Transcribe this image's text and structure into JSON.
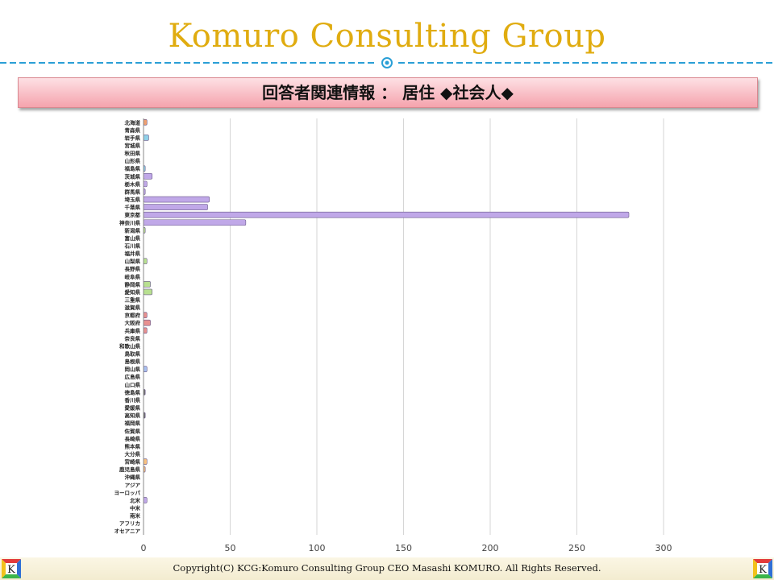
{
  "header": {
    "title": "Komuro Consulting Group"
  },
  "subtitle": "回答者関連情報 ： 居住 ◆社会人◆",
  "footer": {
    "copyright": "Copyright(C)  KCG:Komuro Consulting Group  CEO Masashi KOMURO. All Rights Reserved."
  },
  "logos": {
    "left": "K",
    "right": "K"
  },
  "chart_data": {
    "type": "bar",
    "orientation": "horizontal",
    "xlim": [
      0,
      300
    ],
    "xticks": [
      0,
      50,
      100,
      150,
      200,
      250,
      300
    ],
    "grid": true,
    "categories": [
      "北海道",
      "青森県",
      "岩手県",
      "宮城県",
      "秋田県",
      "山形県",
      "福島県",
      "茨城県",
      "栃木県",
      "群馬県",
      "埼玉県",
      "千葉県",
      "東京都",
      "神奈川県",
      "新潟県",
      "富山県",
      "石川県",
      "福井県",
      "山梨県",
      "長野県",
      "岐阜県",
      "静岡県",
      "愛知県",
      "三重県",
      "滋賀県",
      "京都府",
      "大阪府",
      "兵庫県",
      "奈良県",
      "和歌山県",
      "鳥取県",
      "島根県",
      "岡山県",
      "広島県",
      "山口県",
      "徳島県",
      "香川県",
      "愛媛県",
      "高知県",
      "福岡県",
      "佐賀県",
      "長崎県",
      "熊本県",
      "大分県",
      "宮崎県",
      "鹿児島県",
      "沖縄県",
      "アジア",
      "ヨーロッパ",
      "北米",
      "中米",
      "南米",
      "アフリカ",
      "オセアニア"
    ],
    "values": [
      2,
      0,
      3,
      0,
      0,
      0,
      1,
      5,
      2,
      1,
      38,
      37,
      280,
      59,
      1,
      0,
      0,
      0,
      2,
      0,
      0,
      4,
      5,
      0,
      0,
      2,
      4,
      2,
      0,
      0,
      0,
      0,
      2,
      0,
      0,
      1,
      0,
      0,
      1,
      0,
      0,
      0,
      0,
      0,
      2,
      1,
      0,
      0,
      0,
      2,
      0,
      0,
      0,
      0
    ],
    "colors": [
      "#f0a070",
      "#8fd0e8",
      "#8fd0e8",
      "#8fd0e8",
      "#8fd0e8",
      "#8fd0e8",
      "#8fd0e8",
      "#c0a8e8",
      "#c0a8e8",
      "#c0a8e8",
      "#c0a8e8",
      "#c0a8e8",
      "#c0a8e8",
      "#c0a8e8",
      "#b8e090",
      "#b8e090",
      "#b8e090",
      "#b8e090",
      "#b8e090",
      "#b8e090",
      "#b8e090",
      "#b8e090",
      "#b8e090",
      "#e89090",
      "#e89090",
      "#e89090",
      "#e89090",
      "#e89090",
      "#e89090",
      "#e89090",
      "#a8c0f0",
      "#a8c0f0",
      "#a8c0f0",
      "#a8c0f0",
      "#a8c0f0",
      "#707070",
      "#707070",
      "#707070",
      "#707070",
      "#f8c080",
      "#f8c080",
      "#f8c080",
      "#f8c080",
      "#f8c080",
      "#f8c080",
      "#f8c080",
      "#f8c080",
      "#c0a8e8",
      "#c0a8e8",
      "#c0a8e8",
      "#c0a8e8",
      "#c0a8e8",
      "#c0a8e8",
      "#c0a8e8"
    ]
  }
}
